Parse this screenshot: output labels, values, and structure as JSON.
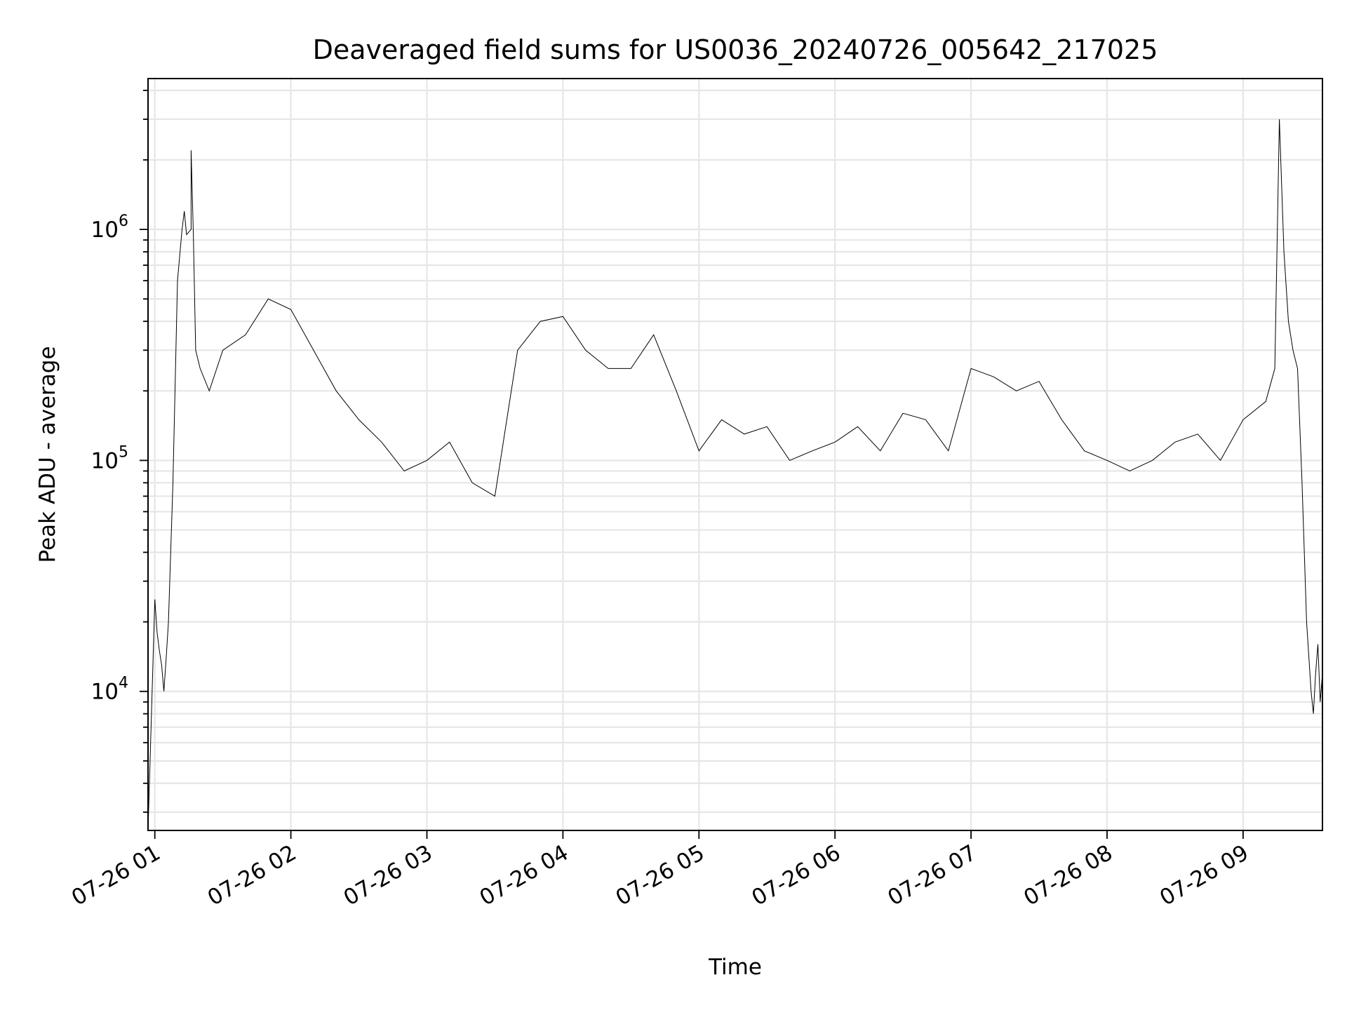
{
  "chart_data": {
    "type": "line",
    "title": "Deaveraged field sums for US0036_20240726_005642_217025",
    "xlabel": "Time",
    "ylabel": "Peak ADU - average",
    "yscale": "log",
    "ylim": [
      2500,
      4500000
    ],
    "xlim": [
      "2024-07-26 00:57",
      "2024-07-26 09:35"
    ],
    "grid": true,
    "x_tick_labels": [
      "07-26 01",
      "07-26 02",
      "07-26 03",
      "07-26 04",
      "07-26 05",
      "07-26 06",
      "07-26 07",
      "07-26 08",
      "07-26 09"
    ],
    "x_ticks": [
      "2024-07-26 01:00",
      "2024-07-26 02:00",
      "2024-07-26 03:00",
      "2024-07-26 04:00",
      "2024-07-26 05:00",
      "2024-07-26 06:00",
      "2024-07-26 07:00",
      "2024-07-26 08:00",
      "2024-07-26 09:00"
    ],
    "y_ticks": [
      {
        "value": 10000,
        "base": "10",
        "exp": "4"
      },
      {
        "value": 100000,
        "base": "10",
        "exp": "5"
      },
      {
        "value": 1000000,
        "base": "10",
        "exp": "6"
      }
    ],
    "series": [
      {
        "color": "#000000",
        "x": [
          "2024-07-26 00:57",
          "2024-07-26 01:00",
          "2024-07-26 01:01",
          "2024-07-26 01:02",
          "2024-07-26 01:03",
          "2024-07-26 01:04",
          "2024-07-26 01:05",
          "2024-07-26 01:06",
          "2024-07-26 01:08",
          "2024-07-26 01:10",
          "2024-07-26 01:12",
          "2024-07-26 01:13",
          "2024-07-26 01:14",
          "2024-07-26 01:16",
          "2024-07-26 01:16",
          "2024-07-26 01:17",
          "2024-07-26 01:18",
          "2024-07-26 01:20",
          "2024-07-26 01:24",
          "2024-07-26 01:30",
          "2024-07-26 01:40",
          "2024-07-26 01:50",
          "2024-07-26 02:00",
          "2024-07-26 02:10",
          "2024-07-26 02:20",
          "2024-07-26 02:30",
          "2024-07-26 02:40",
          "2024-07-26 02:50",
          "2024-07-26 03:00",
          "2024-07-26 03:10",
          "2024-07-26 03:20",
          "2024-07-26 03:30",
          "2024-07-26 03:40",
          "2024-07-26 03:50",
          "2024-07-26 04:00",
          "2024-07-26 04:10",
          "2024-07-26 04:20",
          "2024-07-26 04:30",
          "2024-07-26 04:40",
          "2024-07-26 04:50",
          "2024-07-26 05:00",
          "2024-07-26 05:10",
          "2024-07-26 05:20",
          "2024-07-26 05:30",
          "2024-07-26 05:40",
          "2024-07-26 05:50",
          "2024-07-26 06:00",
          "2024-07-26 06:10",
          "2024-07-26 06:20",
          "2024-07-26 06:30",
          "2024-07-26 06:40",
          "2024-07-26 06:50",
          "2024-07-26 07:00",
          "2024-07-26 07:10",
          "2024-07-26 07:20",
          "2024-07-26 07:30",
          "2024-07-26 07:40",
          "2024-07-26 07:50",
          "2024-07-26 08:00",
          "2024-07-26 08:10",
          "2024-07-26 08:20",
          "2024-07-26 08:30",
          "2024-07-26 08:40",
          "2024-07-26 08:50",
          "2024-07-26 09:00",
          "2024-07-26 09:10",
          "2024-07-26 09:14",
          "2024-07-26 09:16",
          "2024-07-26 09:18",
          "2024-07-26 09:20",
          "2024-07-26 09:22",
          "2024-07-26 09:24",
          "2024-07-26 09:26",
          "2024-07-26 09:28",
          "2024-07-26 09:30",
          "2024-07-26 09:31",
          "2024-07-26 09:32",
          "2024-07-26 09:33",
          "2024-07-26 09:34",
          "2024-07-26 09:35"
        ],
        "y": [
          2500,
          25000,
          18000,
          15000,
          13000,
          10000,
          14000,
          20000,
          80000,
          600000,
          1000000,
          1200000,
          950000,
          1000000,
          2200000,
          950000,
          300000,
          250000,
          200000,
          300000,
          350000,
          500000,
          450000,
          300000,
          200000,
          150000,
          120000,
          90000,
          100000,
          120000,
          80000,
          70000,
          300000,
          400000,
          420000,
          300000,
          250000,
          250000,
          350000,
          200000,
          110000,
          150000,
          130000,
          140000,
          100000,
          110000,
          120000,
          140000,
          110000,
          160000,
          150000,
          110000,
          250000,
          230000,
          200000,
          220000,
          150000,
          110000,
          100000,
          90000,
          100000,
          120000,
          130000,
          100000,
          150000,
          180000,
          250000,
          3000000,
          800000,
          400000,
          300000,
          250000,
          80000,
          20000,
          10000,
          8000,
          12000,
          16000,
          9000,
          12000
        ]
      }
    ]
  }
}
